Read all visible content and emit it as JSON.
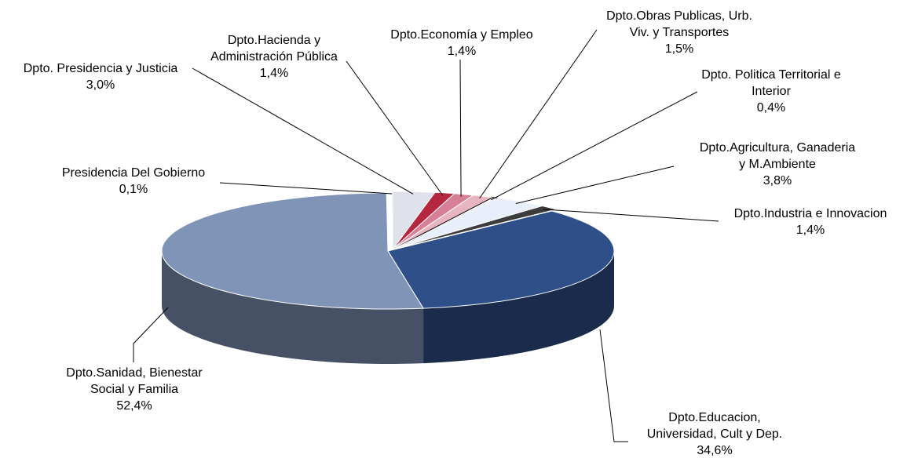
{
  "chart_data": {
    "type": "pie",
    "style": "3d-exploded-pie",
    "title": "",
    "legend": "none",
    "labels_format": "category-name and percentage",
    "slices": [
      {
        "lines": [
          "Dpto. Presidencia y Justicia"
        ],
        "value_label": "3,0%",
        "value": 3.0,
        "color": "#dfe2ea"
      },
      {
        "lines": [
          "Dpto.Hacienda y",
          "Administración Pública"
        ],
        "value_label": "1,4%",
        "value": 1.4,
        "color": "#b5263f"
      },
      {
        "lines": [
          "Dpto.Economía y Empleo"
        ],
        "value_label": "1,4%",
        "value": 1.4,
        "color": "#d77f96"
      },
      {
        "lines": [
          "Dpto.Obras Publicas, Urb.",
          "Viv. y Transportes"
        ],
        "value_label": "1,5%",
        "value": 1.5,
        "color": "#e8b4c0"
      },
      {
        "lines": [
          "Dpto. Politica Territorial  e",
          "Interior"
        ],
        "value_label": "0,4%",
        "value": 0.4,
        "color": "#ffffff"
      },
      {
        "lines": [
          "Dpto.Agricultura, Ganaderia",
          "y M.Ambiente"
        ],
        "value_label": "3,8%",
        "value": 3.8,
        "color": "#e8eefa"
      },
      {
        "lines": [
          "Dpto.Industria e Innovacion"
        ],
        "value_label": "1,4%",
        "value": 1.4,
        "color": "#3c3c3c"
      },
      {
        "lines": [
          "Dpto.Educacion,",
          "Universidad, Cult y Dep."
        ],
        "value_label": "34,6%",
        "value": 34.6,
        "color": "#2f4f89"
      },
      {
        "lines": [
          "Dpto.Sanidad, Bienestar",
          "Social y Familia"
        ],
        "value_label": "52,4%",
        "value": 52.4,
        "color": "#8094b8"
      },
      {
        "lines": [
          "Presidencia Del Gobierno"
        ],
        "value_label": "0,1%",
        "value": 0.1,
        "color": "#dfe2ea"
      }
    ]
  }
}
